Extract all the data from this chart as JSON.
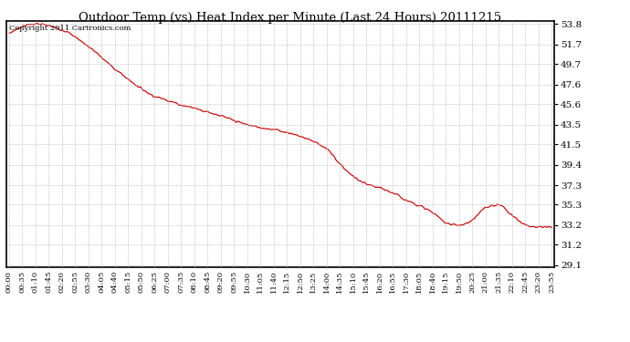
{
  "title": "Outdoor Temp (vs) Heat Index per Minute (Last 24 Hours) 20111215",
  "copyright_text": "Copyright 2011 Cartronics.com",
  "line_color": "#cc0000",
  "background_color": "#ffffff",
  "grid_color": "#bbbbbb",
  "y_min": 29.1,
  "y_max": 53.8,
  "y_ticks": [
    29.1,
    31.2,
    33.2,
    35.3,
    37.3,
    39.4,
    41.5,
    43.5,
    45.6,
    47.6,
    49.7,
    51.7,
    53.8
  ],
  "x_tick_labels": [
    "00:00",
    "00:35",
    "01:10",
    "01:45",
    "02:20",
    "02:55",
    "03:30",
    "04:05",
    "04:40",
    "05:15",
    "05:50",
    "06:25",
    "07:00",
    "07:35",
    "08:10",
    "08:45",
    "09:20",
    "09:55",
    "10:30",
    "11:05",
    "11:40",
    "12:15",
    "12:50",
    "13:25",
    "14:00",
    "14:35",
    "15:10",
    "15:45",
    "16:20",
    "16:55",
    "17:30",
    "18:05",
    "18:40",
    "19:15",
    "19:50",
    "20:25",
    "21:00",
    "21:35",
    "22:10",
    "22:45",
    "23:20",
    "23:55"
  ],
  "key_times": [
    0,
    2,
    4,
    6,
    8,
    10,
    11,
    12,
    13,
    14,
    15,
    16,
    17,
    18,
    19,
    20,
    21,
    22,
    23,
    24,
    25,
    26,
    27,
    28,
    29,
    30,
    31,
    32,
    33,
    34,
    35,
    36,
    37,
    38,
    39,
    40,
    41
  ],
  "key_vals": [
    52.8,
    53.8,
    53.2,
    51.5,
    49.2,
    47.2,
    46.4,
    46.0,
    45.5,
    45.2,
    44.8,
    44.4,
    43.9,
    43.5,
    43.2,
    43.0,
    42.7,
    42.3,
    41.8,
    41.0,
    39.5,
    38.2,
    37.4,
    37.0,
    36.5,
    35.8,
    35.2,
    34.5,
    33.5,
    33.2,
    33.7,
    35.0,
    35.3,
    34.2,
    33.3,
    33.0,
    33.0
  ],
  "noise_std": 0.12
}
